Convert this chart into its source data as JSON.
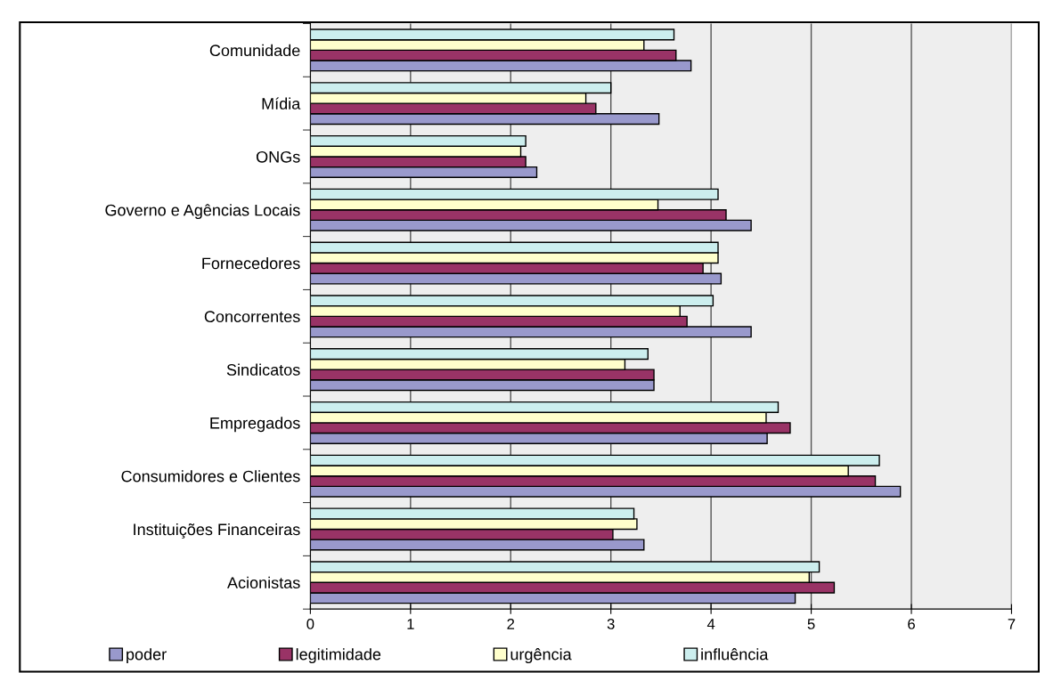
{
  "chart_data": {
    "type": "bar",
    "orientation": "horizontal",
    "categories": [
      "Comunidade",
      "Mídia",
      "ONGs",
      "Governo e Agências Locais",
      "Fornecedores",
      "Concorrentes",
      "Sindicatos",
      "Empregados",
      "Consumidores e Clientes",
      "Instituições Financeiras",
      "Acionistas"
    ],
    "series": [
      {
        "name": "poder",
        "color": "#9999cc",
        "values": [
          3.8,
          3.48,
          2.26,
          4.4,
          4.1,
          4.4,
          3.43,
          4.56,
          5.89,
          3.33,
          4.84
        ]
      },
      {
        "name": "legitimidade",
        "color": "#993366",
        "values": [
          3.65,
          2.85,
          2.15,
          4.15,
          3.92,
          3.76,
          3.43,
          4.79,
          5.64,
          3.02,
          5.23
        ]
      },
      {
        "name": "urgência",
        "color": "#ffffcc",
        "values": [
          3.33,
          2.75,
          2.1,
          3.47,
          4.07,
          3.69,
          3.14,
          4.55,
          5.37,
          3.26,
          4.98
        ]
      },
      {
        "name": "influência",
        "color": "#cceeee",
        "values": [
          3.63,
          3.0,
          2.15,
          4.07,
          4.07,
          4.02,
          3.37,
          4.67,
          5.68,
          3.23,
          5.08
        ]
      }
    ],
    "xlim": [
      0,
      7
    ],
    "xticks": [
      0,
      1,
      2,
      3,
      4,
      5,
      6,
      7
    ],
    "grid": "x",
    "legend": "bottom"
  }
}
